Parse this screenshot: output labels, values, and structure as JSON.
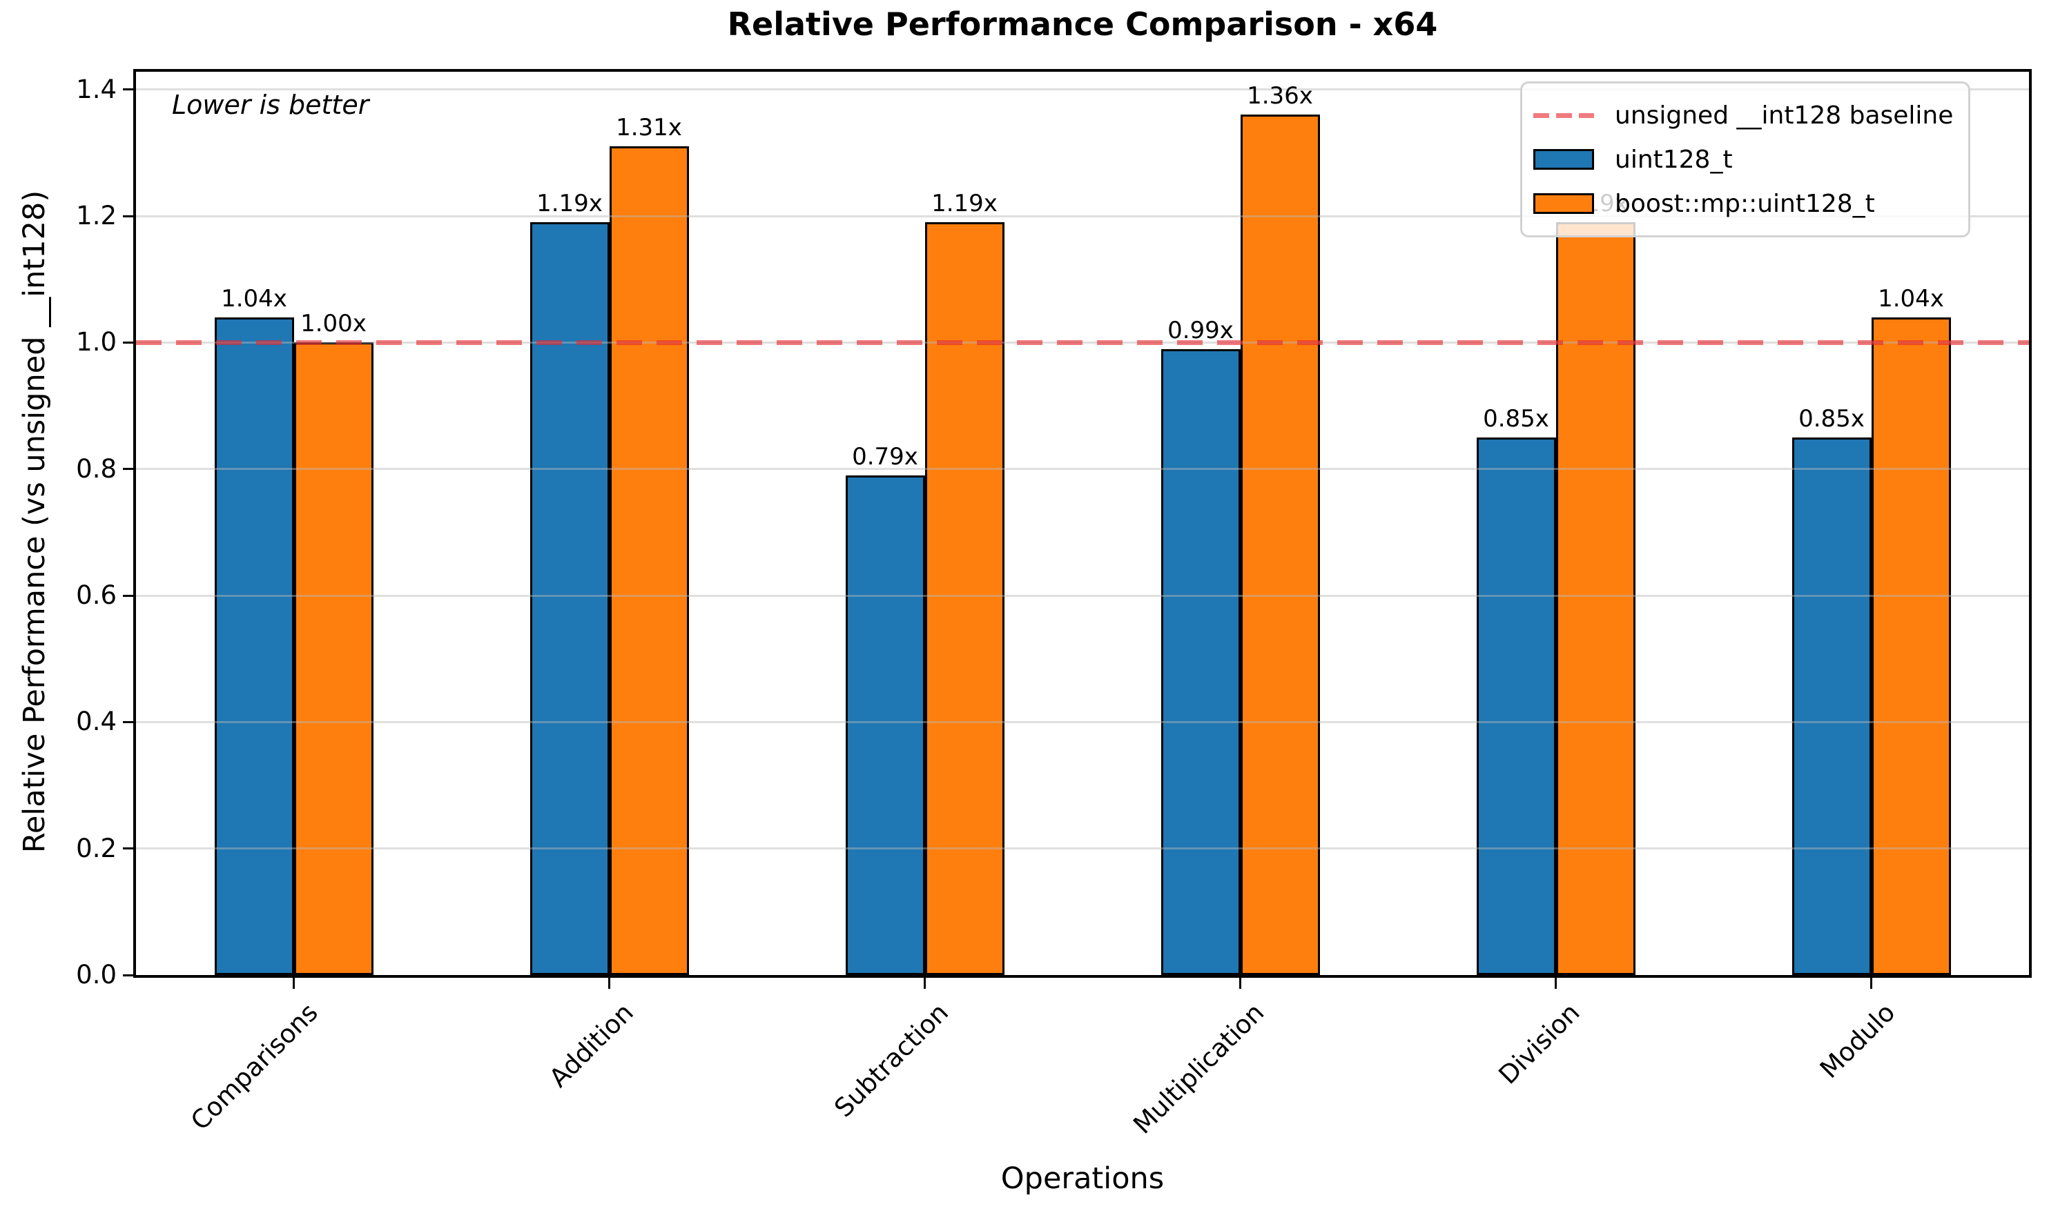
{
  "chart_data": {
    "type": "bar",
    "title": "Relative Performance Comparison - x64",
    "annotation": "Lower is better",
    "xlabel": "Operations",
    "ylabel": "Relative Performance (vs unsigned __int128)",
    "categories": [
      "Comparisons",
      "Addition",
      "Subtraction",
      "Multiplication",
      "Division",
      "Modulo"
    ],
    "series": [
      {
        "name": "uint128_t",
        "color": "#1f77b4",
        "values": [
          1.04,
          1.19,
          0.79,
          0.99,
          0.85,
          0.85
        ],
        "labels": [
          "1.04x",
          "1.19x",
          "0.79x",
          "0.99x",
          "0.85x",
          "0.85x"
        ]
      },
      {
        "name": "boost::mp::uint128_t",
        "color": "#ff7f0e",
        "values": [
          1.0,
          1.31,
          1.19,
          1.36,
          1.19,
          1.04
        ],
        "labels": [
          "1.00x",
          "1.31x",
          "1.19x",
          "1.36x",
          "1.19x",
          "1.04x"
        ]
      }
    ],
    "baseline": {
      "value": 1.0,
      "label": "unsigned __int128 baseline",
      "color": "#e6282d"
    },
    "yticks": {
      "values": [
        0.0,
        0.2,
        0.4,
        0.6,
        0.8,
        1.0,
        1.2,
        1.4
      ],
      "labels": [
        "0.0",
        "0.2",
        "0.4",
        "0.6",
        "0.8",
        "1.0",
        "1.2",
        "1.4"
      ]
    },
    "ylim": [
      0,
      1.428
    ],
    "grid": true,
    "grid_axis": "y",
    "legend_position": "upper right",
    "bar_edge_color": "#000000",
    "background_color": "#ffffff"
  }
}
